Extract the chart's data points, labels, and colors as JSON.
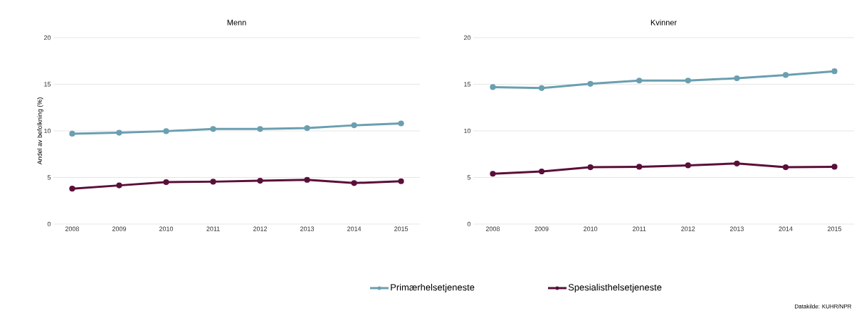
{
  "chart_data": [
    {
      "type": "line",
      "title": "Menn",
      "ylabel": "Andel av befolkning (%)",
      "categories": [
        "2008",
        "2009",
        "2010",
        "2011",
        "2012",
        "2013",
        "2014",
        "2015"
      ],
      "ylim": [
        0,
        20
      ],
      "yticks": [
        0,
        5,
        10,
        15,
        20
      ],
      "grid": "y",
      "marker": "circle",
      "line_style": "solid",
      "legend": "bottom",
      "series": [
        {
          "name": "Primærhelsetjeneste",
          "color": "#6a9fb0",
          "values": [
            9.7,
            9.8,
            9.97,
            10.2,
            10.2,
            10.3,
            10.6,
            10.8
          ]
        },
        {
          "name": "Spesialisthelsetjeneste",
          "color": "#5a0f3a",
          "values": [
            3.8,
            4.15,
            4.5,
            4.55,
            4.65,
            4.75,
            4.4,
            4.6
          ]
        }
      ]
    },
    {
      "type": "line",
      "title": "Kvinner",
      "categories": [
        "2008",
        "2009",
        "2010",
        "2011",
        "2012",
        "2013",
        "2014",
        "2015"
      ],
      "ylim": [
        0,
        20
      ],
      "yticks": [
        0,
        5,
        10,
        15,
        20
      ],
      "grid": "y",
      "marker": "circle",
      "line_style": "solid",
      "annotations": [
        "Datakilde: KUHR/NPR"
      ],
      "series": [
        {
          "color": "#6a9fb0",
          "values": [
            14.7,
            14.6,
            15.05,
            15.4,
            15.4,
            15.65,
            16.0,
            16.4
          ]
        },
        {
          "color": "#5a0f3a",
          "values": [
            5.4,
            5.65,
            6.1,
            6.15,
            6.3,
            6.5,
            6.1,
            6.15
          ]
        }
      ]
    }
  ]
}
